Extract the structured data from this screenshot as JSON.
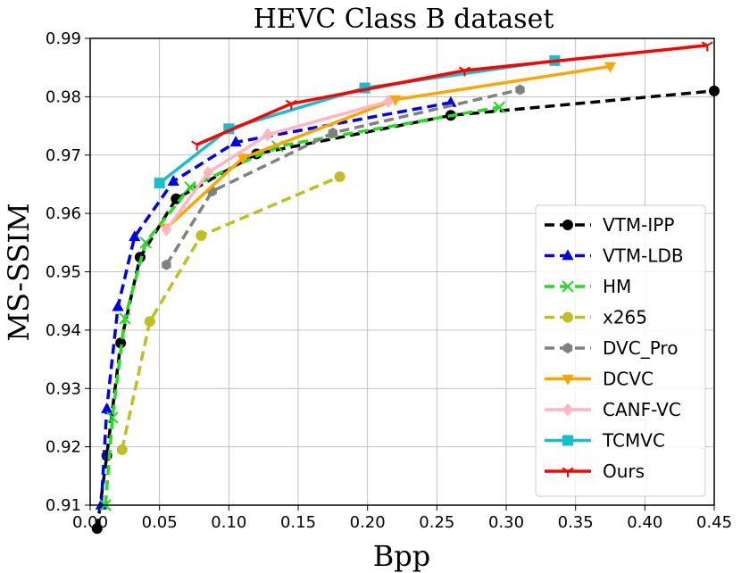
{
  "chart_data": {
    "type": "line",
    "title": "HEVC Class B dataset",
    "xlabel": "Bpp",
    "ylabel": "MS-SSIM",
    "xlim": [
      0.0,
      0.45
    ],
    "ylim": [
      0.91,
      0.99
    ],
    "xticks": [
      "0.00",
      "0.05",
      "0.10",
      "0.15",
      "0.20",
      "0.25",
      "0.30",
      "0.35",
      "0.40",
      "0.45"
    ],
    "yticks": [
      "0.91",
      "0.92",
      "0.93",
      "0.94",
      "0.95",
      "0.96",
      "0.97",
      "0.98",
      "0.99"
    ],
    "grid": true,
    "legend_position": "lower-right",
    "series": [
      {
        "name": "VTM-IPP",
        "color": "#000000",
        "dash": "dashed",
        "marker": "circle",
        "x": [
          0.005,
          0.012,
          0.022,
          0.036,
          0.062,
          0.12,
          0.26,
          0.45
        ],
        "y": [
          0.906,
          0.9185,
          0.9378,
          0.9525,
          0.9625,
          0.9702,
          0.9768,
          0.981
        ]
      },
      {
        "name": "VTM-LDB",
        "color": "#0000ee",
        "dash": "dashed",
        "marker": "triangle-up",
        "x": [
          0.008,
          0.012,
          0.02,
          0.032,
          0.06,
          0.105,
          0.26
        ],
        "y": [
          0.91,
          0.9265,
          0.944,
          0.956,
          0.9655,
          0.9722,
          0.979
        ]
      },
      {
        "name": "HM",
        "color": "#22dd22",
        "dash": "dashed",
        "marker": "x",
        "x": [
          0.011,
          0.016,
          0.025,
          0.04,
          0.072,
          0.135,
          0.295
        ],
        "y": [
          0.91,
          0.925,
          0.942,
          0.955,
          0.9645,
          0.9715,
          0.9782
        ]
      },
      {
        "name": "x265",
        "color": "#bfbf22",
        "dash": "dashed",
        "marker": "circle",
        "x": [
          0.023,
          0.043,
          0.08,
          0.18
        ],
        "y": [
          0.9195,
          0.9415,
          0.9562,
          0.9663
        ]
      },
      {
        "name": "DVC_Pro",
        "color": "#808080",
        "dash": "dashed",
        "marker": "hexagon",
        "x": [
          0.055,
          0.088,
          0.175,
          0.31
        ],
        "y": [
          0.9512,
          0.9638,
          0.9738,
          0.9812
        ]
      },
      {
        "name": "DCVC",
        "color": "#ffa500",
        "dash": "solid",
        "marker": "triangle-down",
        "x": [
          0.055,
          0.11,
          0.22,
          0.375
        ],
        "y": [
          0.9575,
          0.9695,
          0.9795,
          0.9852
        ]
      },
      {
        "name": "CANF-VC",
        "color": "#ffb6c1",
        "dash": "solid",
        "marker": "diamond",
        "x": [
          0.055,
          0.085,
          0.128,
          0.215
        ],
        "y": [
          0.9572,
          0.967,
          0.9735,
          0.9792
        ]
      },
      {
        "name": "TCMVC",
        "color": "#17becf",
        "dash": "solid",
        "marker": "square",
        "x": [
          0.05,
          0.1,
          0.198,
          0.335
        ],
        "y": [
          0.9652,
          0.9745,
          0.9815,
          0.9862
        ]
      },
      {
        "name": "Ours",
        "color": "#ff0000",
        "dash": "solid",
        "marker": "tri-down",
        "x": [
          0.077,
          0.145,
          0.27,
          0.445
        ],
        "y": [
          0.9718,
          0.9788,
          0.9845,
          0.9888
        ]
      }
    ]
  }
}
